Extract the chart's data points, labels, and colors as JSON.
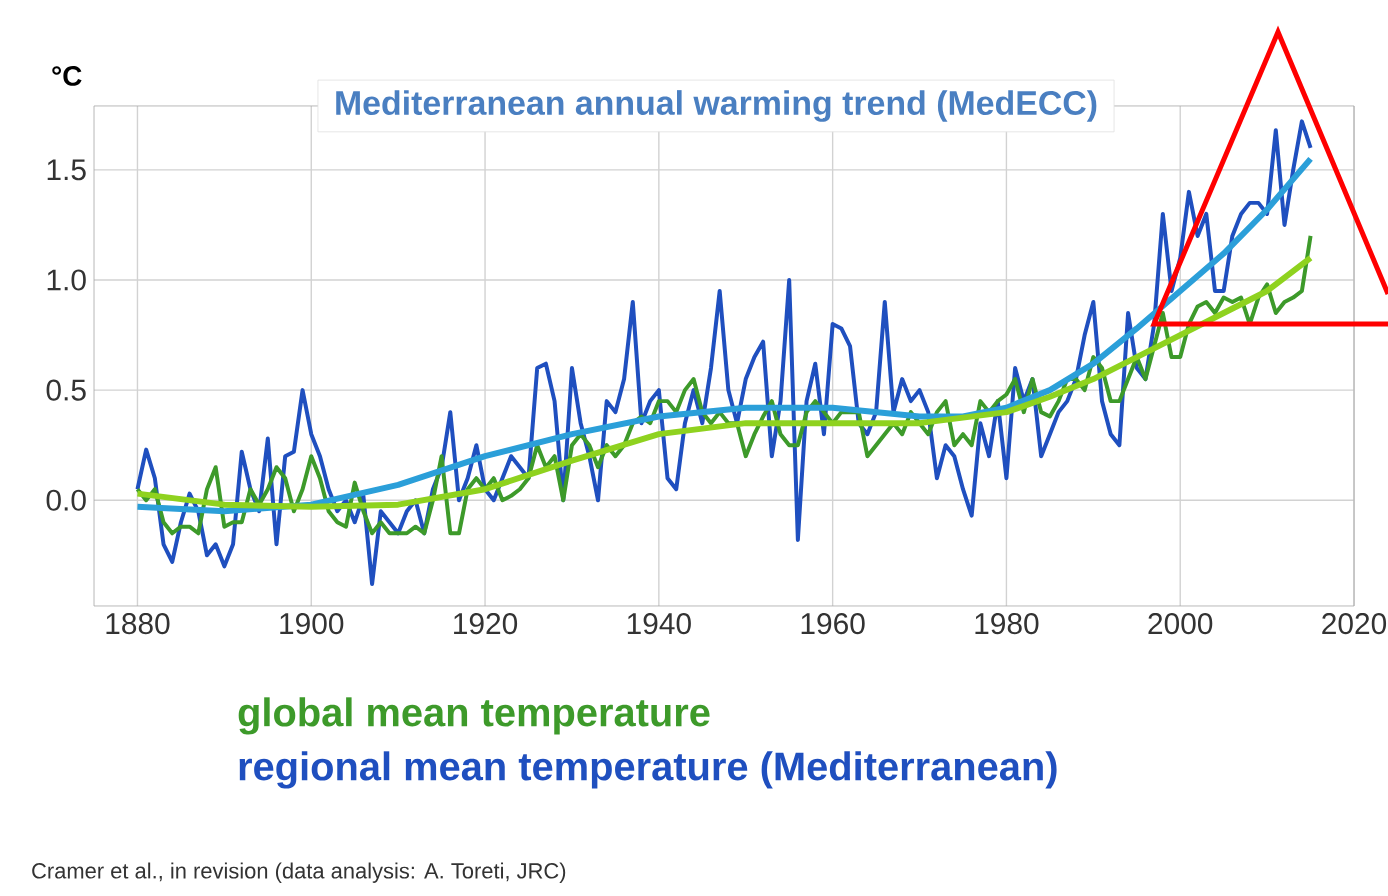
{
  "chart_data": {
    "type": "line",
    "title": "Mediterranean annual warming trend (MedECC)",
    "ylabel": "°C",
    "x": [
      1880,
      1881,
      1882,
      1883,
      1884,
      1885,
      1886,
      1887,
      1888,
      1889,
      1890,
      1891,
      1892,
      1893,
      1894,
      1895,
      1896,
      1897,
      1898,
      1899,
      1900,
      1901,
      1902,
      1903,
      1904,
      1905,
      1906,
      1907,
      1908,
      1909,
      1910,
      1911,
      1912,
      1913,
      1914,
      1915,
      1916,
      1917,
      1918,
      1919,
      1920,
      1921,
      1922,
      1923,
      1924,
      1925,
      1926,
      1927,
      1928,
      1929,
      1930,
      1931,
      1932,
      1933,
      1934,
      1935,
      1936,
      1937,
      1938,
      1939,
      1940,
      1941,
      1942,
      1943,
      1944,
      1945,
      1946,
      1947,
      1948,
      1949,
      1950,
      1951,
      1952,
      1953,
      1954,
      1955,
      1956,
      1957,
      1958,
      1959,
      1960,
      1961,
      1962,
      1963,
      1964,
      1965,
      1966,
      1967,
      1968,
      1969,
      1970,
      1971,
      1972,
      1973,
      1974,
      1975,
      1976,
      1977,
      1978,
      1979,
      1980,
      1981,
      1982,
      1983,
      1984,
      1985,
      1986,
      1987,
      1988,
      1989,
      1990,
      1991,
      1992,
      1993,
      1994,
      1995,
      1996,
      1997,
      1998,
      1999,
      2000,
      2001,
      2002,
      2003,
      2004,
      2005,
      2006,
      2007,
      2008,
      2009,
      2010,
      2011,
      2012,
      2013,
      2014,
      2015
    ],
    "series": [
      {
        "name": "regional mean temperature (Mediterranean)",
        "color": "#1f4fbf",
        "values": [
          0.05,
          0.23,
          0.1,
          -0.2,
          -0.28,
          -0.1,
          0.03,
          -0.05,
          -0.25,
          -0.2,
          -0.3,
          -0.2,
          0.22,
          0.05,
          -0.05,
          0.28,
          -0.2,
          0.2,
          0.22,
          0.5,
          0.3,
          0.2,
          0.05,
          -0.05,
          0.0,
          -0.1,
          0.02,
          -0.38,
          -0.05,
          -0.1,
          -0.15,
          -0.05,
          0.0,
          -0.15,
          0.05,
          0.15,
          0.4,
          0.0,
          0.1,
          0.25,
          0.05,
          0.0,
          0.1,
          0.2,
          0.15,
          0.1,
          0.6,
          0.62,
          0.45,
          0.0,
          0.6,
          0.35,
          0.2,
          0.0,
          0.45,
          0.4,
          0.55,
          0.9,
          0.35,
          0.45,
          0.5,
          0.1,
          0.05,
          0.35,
          0.5,
          0.35,
          0.6,
          0.95,
          0.5,
          0.35,
          0.55,
          0.65,
          0.72,
          0.2,
          0.45,
          1.0,
          -0.18,
          0.45,
          0.62,
          0.3,
          0.8,
          0.78,
          0.7,
          0.35,
          0.3,
          0.4,
          0.9,
          0.4,
          0.55,
          0.45,
          0.5,
          0.4,
          0.1,
          0.25,
          0.2,
          0.05,
          -0.07,
          0.35,
          0.2,
          0.45,
          0.1,
          0.6,
          0.45,
          0.55,
          0.2,
          0.3,
          0.4,
          0.45,
          0.55,
          0.75,
          0.9,
          0.45,
          0.3,
          0.25,
          0.85,
          0.6,
          0.55,
          0.8,
          1.3,
          0.95,
          1.1,
          1.4,
          1.2,
          1.3,
          0.95,
          0.95,
          1.2,
          1.3,
          1.35,
          1.35,
          1.3,
          1.68,
          1.25,
          1.5,
          1.72,
          1.6
        ]
      },
      {
        "name": "global mean temperature",
        "color": "#3d9a2a",
        "values": [
          0.05,
          0.0,
          0.05,
          -0.1,
          -0.15,
          -0.12,
          -0.12,
          -0.15,
          0.05,
          0.15,
          -0.12,
          -0.1,
          -0.1,
          0.05,
          -0.02,
          0.05,
          0.15,
          0.1,
          -0.05,
          0.05,
          0.2,
          0.1,
          -0.05,
          -0.1,
          -0.12,
          0.08,
          -0.05,
          -0.15,
          -0.1,
          -0.15,
          -0.15,
          -0.15,
          -0.12,
          -0.15,
          0.0,
          0.2,
          -0.15,
          -0.15,
          0.05,
          0.1,
          0.05,
          0.1,
          0.0,
          0.02,
          0.05,
          0.1,
          0.25,
          0.15,
          0.2,
          0.0,
          0.25,
          0.3,
          0.25,
          0.15,
          0.25,
          0.2,
          0.25,
          0.35,
          0.38,
          0.35,
          0.45,
          0.45,
          0.4,
          0.5,
          0.55,
          0.4,
          0.35,
          0.4,
          0.35,
          0.35,
          0.2,
          0.3,
          0.38,
          0.45,
          0.3,
          0.25,
          0.25,
          0.4,
          0.45,
          0.4,
          0.35,
          0.4,
          0.4,
          0.4,
          0.2,
          0.25,
          0.3,
          0.35,
          0.3,
          0.4,
          0.35,
          0.3,
          0.4,
          0.45,
          0.25,
          0.3,
          0.25,
          0.45,
          0.4,
          0.45,
          0.48,
          0.55,
          0.4,
          0.55,
          0.4,
          0.38,
          0.45,
          0.55,
          0.55,
          0.5,
          0.65,
          0.6,
          0.45,
          0.45,
          0.55,
          0.65,
          0.55,
          0.7,
          0.85,
          0.65,
          0.65,
          0.8,
          0.88,
          0.9,
          0.85,
          0.92,
          0.9,
          0.92,
          0.8,
          0.92,
          0.98,
          0.85,
          0.9,
          0.92,
          0.95,
          1.2
        ]
      },
      {
        "color": "#2b9fd9",
        "x": [
          1880,
          1890,
          1900,
          1910,
          1920,
          1930,
          1940,
          1950,
          1960,
          1970,
          1975,
          1980,
          1985,
          1990,
          1995,
          2000,
          2005,
          2010,
          2015
        ],
        "values": [
          -0.03,
          -0.05,
          -0.02,
          0.07,
          0.2,
          0.3,
          0.38,
          0.42,
          0.42,
          0.38,
          0.38,
          0.42,
          0.5,
          0.62,
          0.78,
          0.95,
          1.12,
          1.32,
          1.55
        ]
      },
      {
        "color": "#8fd21f",
        "x": [
          1880,
          1890,
          1900,
          1910,
          1920,
          1930,
          1940,
          1950,
          1960,
          1970,
          1980,
          1985,
          1990,
          1995,
          2000,
          2005,
          2010,
          2015
        ],
        "values": [
          0.03,
          -0.02,
          -0.03,
          -0.02,
          0.05,
          0.18,
          0.3,
          0.35,
          0.35,
          0.35,
          0.4,
          0.47,
          0.55,
          0.65,
          0.75,
          0.85,
          0.95,
          1.1
        ]
      }
    ],
    "xlim": [
      1875,
      2020
    ],
    "xticks": [
      1880,
      1900,
      1920,
      1940,
      1960,
      1980,
      2000,
      2020
    ],
    "ylim": [
      -0.48,
      1.79
    ],
    "yticks": [
      {
        "value": 0,
        "label": "0.0"
      },
      {
        "value": 0.5,
        "label": "0.5"
      },
      {
        "value": 1,
        "label": "1.0"
      },
      {
        "value": 1.5,
        "label": "1.5"
      }
    ],
    "grid": true,
    "legend": "bottom",
    "line_style": "solid",
    "annotations": [
      "Cramer et al., in revision (data analysis: A. Toreti, JRC)"
    ]
  }
}
